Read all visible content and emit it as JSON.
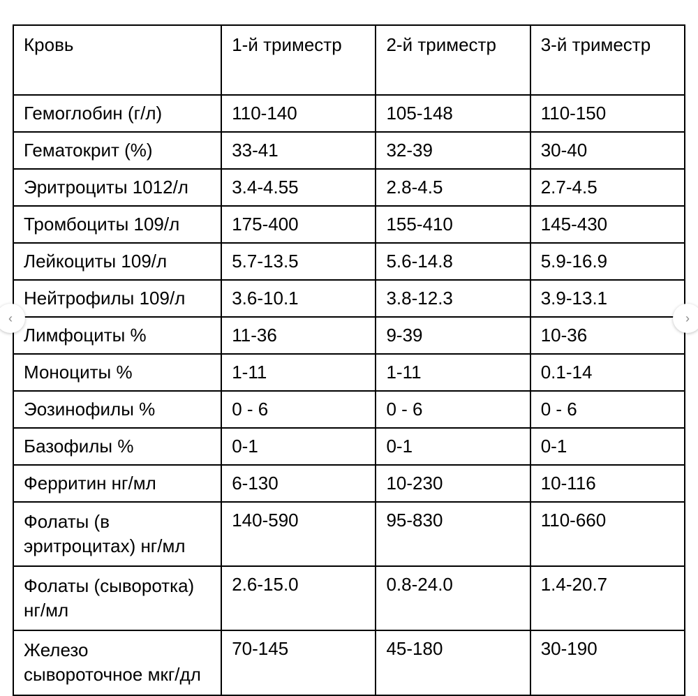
{
  "table": {
    "columns": [
      "Кровь",
      "1-й триместр",
      "2-й триместр",
      "3-й триместр"
    ],
    "rows": [
      [
        "Гемоглобин (г/л)",
        "110-140",
        "105-148",
        "110-150"
      ],
      [
        "Гематокрит (%)",
        "33-41",
        "32-39",
        "30-40"
      ],
      [
        "Эритроциты 1012/л",
        "3.4-4.55",
        "2.8-4.5",
        "2.7-4.5"
      ],
      [
        "Тромбоциты 109/л",
        "175-400",
        "155-410",
        "145-430"
      ],
      [
        "Лейкоциты 109/л",
        "5.7-13.5",
        "5.6-14.8",
        "5.9-16.9"
      ],
      [
        "Нейтрофилы 109/л",
        "3.6-10.1",
        "3.8-12.3",
        "3.9-13.1"
      ],
      [
        "Лимфоциты %",
        "11-36",
        "9-39",
        "10-36"
      ],
      [
        "Моноциты %",
        "1-11",
        "1-11",
        "0.1-14"
      ],
      [
        "Эозинофилы %",
        "0 - 6",
        "0 - 6",
        "0 - 6"
      ],
      [
        "Базофилы %",
        "0-1",
        "0-1",
        "0-1"
      ],
      [
        "Ферритин нг/мл",
        "6-130",
        "10-230",
        "10-116"
      ],
      [
        "Фолаты (в эритроцитах) нг/мл",
        "140-590",
        "95-830",
        "110-660"
      ],
      [
        "Фолаты (сыворотка) нг/мл",
        "2.6-15.0",
        "0.8-24.0",
        "1.4-20.7"
      ],
      [
        "Железо сывороточное мкг/дл",
        "70-145",
        "45-180",
        "30-190"
      ]
    ],
    "border_color": "#000000",
    "background_color": "#ffffff",
    "font_size": 26,
    "font_family": "Arial",
    "text_color": "#000000"
  },
  "nav": {
    "left_glyph": "‹",
    "right_glyph": "›"
  }
}
